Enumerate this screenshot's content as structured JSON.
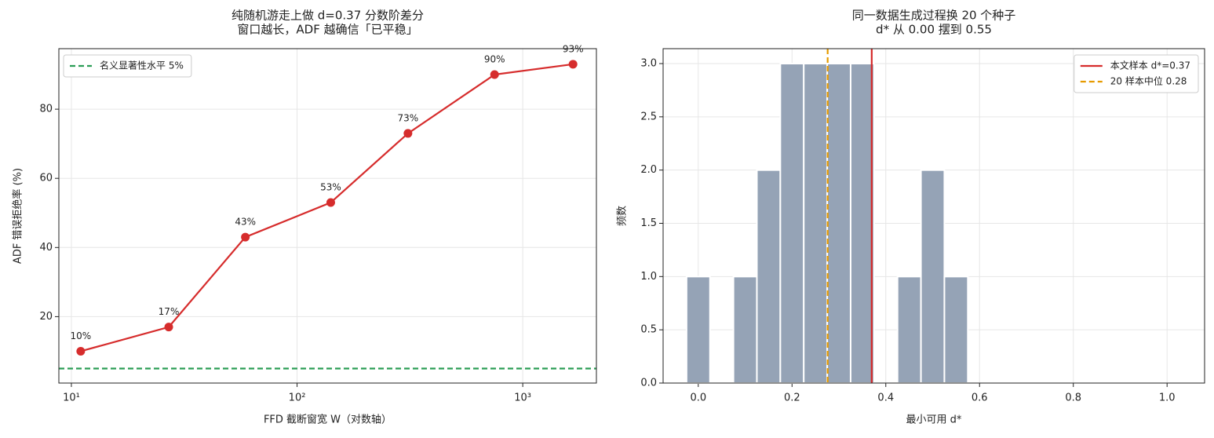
{
  "chart_data": [
    {
      "type": "line",
      "title": [
        "纯随机游走上做 d=0.37 分数阶差分",
        "窗口越长，ADF 越确信「已平稳」"
      ],
      "xlabel": "FFD 截断窗宽 W（对数轴）",
      "ylabel": "ADF 错误拒绝率 (%)",
      "xscale": "log",
      "x": [
        11,
        27,
        59,
        141,
        310,
        750,
        1670
      ],
      "values": [
        10,
        17,
        43,
        53,
        73,
        90,
        93
      ],
      "value_labels": [
        "10%",
        "17%",
        "43%",
        "53%",
        "73%",
        "90%",
        "93%"
      ],
      "color": "#d62c2c",
      "xlim": [
        8.8,
        2120
      ],
      "ylim": [
        0.8,
        97.5
      ],
      "xticks": [
        {
          "value": 10,
          "label": "10¹"
        },
        {
          "value": 100,
          "label": "10²"
        },
        {
          "value": 1000,
          "label": "10³"
        }
      ],
      "yticks": [
        20,
        40,
        60,
        80
      ],
      "grid": true,
      "reference_lines": [
        {
          "axis": "y",
          "value": 5,
          "label": "名义显著性水平 5%",
          "color": "#2a9d55",
          "style": "dashed"
        }
      ],
      "legend": "upper left"
    },
    {
      "type": "histogram",
      "title": [
        "同一数据生成过程换 20 个种子",
        "d* 从 0.00 摆到 0.55"
      ],
      "xlabel": "最小可用 d*",
      "ylabel": "频数",
      "bins": [
        -0.025,
        0.025,
        0.075,
        0.125,
        0.175,
        0.225,
        0.275,
        0.325,
        0.375,
        0.425,
        0.475,
        0.525,
        0.575
      ],
      "values": [
        1,
        0,
        1,
        2,
        3,
        3,
        3,
        3,
        0,
        1,
        2,
        1
      ],
      "color": "#95a3b6",
      "xlim": [
        -0.075,
        1.08
      ],
      "ylim": [
        0,
        3.14
      ],
      "xticks": [
        {
          "value": 0,
          "label": "0.0"
        },
        {
          "value": 0.2,
          "label": "0.2"
        },
        {
          "value": 0.4,
          "label": "0.4"
        },
        {
          "value": 0.6,
          "label": "0.6"
        },
        {
          "value": 0.8,
          "label": "0.8"
        },
        {
          "value": 1,
          "label": "1.0"
        }
      ],
      "yticks": [
        {
          "value": 0,
          "label": "0.0"
        },
        {
          "value": 0.5,
          "label": "0.5"
        },
        {
          "value": 1,
          "label": "1.0"
        },
        {
          "value": 1.5,
          "label": "1.5"
        },
        {
          "value": 2,
          "label": "2.0"
        },
        {
          "value": 2.5,
          "label": "2.5"
        },
        {
          "value": 3,
          "label": "3.0"
        }
      ],
      "grid": true,
      "reference_lines": [
        {
          "axis": "x",
          "value": 0.37,
          "label": "本文样本 d*=0.37",
          "color": "#d62c2c",
          "style": "solid"
        },
        {
          "axis": "x",
          "value": 0.276,
          "label": "20 样本中位 0.28",
          "color": "#e69b00",
          "style": "dashed"
        }
      ],
      "legend": "upper right"
    }
  ]
}
